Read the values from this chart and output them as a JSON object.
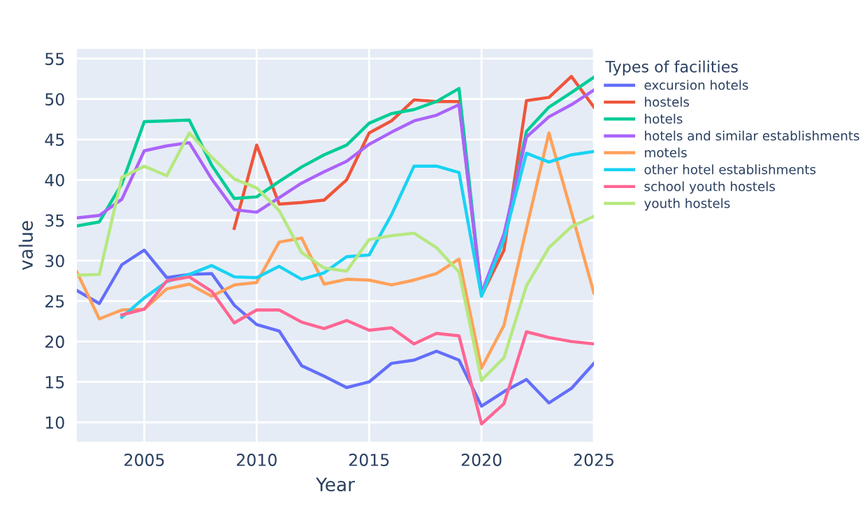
{
  "chart_data": {
    "type": "line",
    "xlabel": "Year",
    "ylabel": "value",
    "legend_title": "Types of facilities",
    "legend": "right",
    "grid": true,
    "xlim": [
      2002,
      2025
    ],
    "xticks": [
      2005,
      2010,
      2015,
      2020,
      2025
    ],
    "ylim": [
      7.6,
      56.2
    ],
    "yticks": [
      10,
      15,
      20,
      25,
      30,
      35,
      40,
      45,
      50,
      55
    ],
    "x": [
      2002,
      2003,
      2004,
      2005,
      2006,
      2007,
      2008,
      2009,
      2010,
      2011,
      2012,
      2013,
      2014,
      2015,
      2016,
      2017,
      2018,
      2019,
      2020,
      2021,
      2022,
      2023,
      2024,
      2025
    ],
    "series": [
      {
        "name": "excursion hotels",
        "color": "#636efa",
        "values": [
          26.3,
          24.7,
          29.5,
          31.3,
          27.9,
          28.3,
          28.4,
          24.5,
          22.1,
          21.3,
          17.0,
          15.7,
          14.3,
          15.0,
          17.3,
          17.7,
          18.8,
          17.7,
          12.0,
          13.8,
          15.3,
          12.4,
          14.2,
          17.3
        ]
      },
      {
        "name": "hostels",
        "color": "#ef553b",
        "values": [
          null,
          null,
          null,
          null,
          null,
          null,
          null,
          34.0,
          44.3,
          37.0,
          37.2,
          37.5,
          40.0,
          45.8,
          47.3,
          49.9,
          49.7,
          49.7,
          25.7,
          31.3,
          49.8,
          50.2,
          52.8,
          49.0
        ]
      },
      {
        "name": "hotels",
        "color": "#00cc96",
        "values": [
          34.3,
          34.8,
          39.5,
          47.2,
          47.3,
          47.4,
          41.8,
          37.7,
          37.9,
          39.8,
          41.6,
          43.1,
          44.3,
          47.0,
          48.2,
          48.7,
          49.7,
          51.3,
          25.8,
          33.0,
          46.0,
          49.0,
          50.8,
          52.7
        ]
      },
      {
        "name": "hotels and similar establishments",
        "color": "#ab63fa",
        "values": [
          35.3,
          35.6,
          37.6,
          43.6,
          44.2,
          44.6,
          40.1,
          36.3,
          36.0,
          37.8,
          39.6,
          41.0,
          42.3,
          44.4,
          45.9,
          47.3,
          48.0,
          49.3,
          26.0,
          33.3,
          45.3,
          47.8,
          49.3,
          51.1
        ]
      },
      {
        "name": "motels",
        "color": "#ffa15a",
        "values": [
          28.6,
          22.8,
          23.9,
          24.0,
          26.5,
          27.1,
          25.6,
          27.0,
          27.3,
          32.3,
          32.8,
          27.1,
          27.7,
          27.6,
          27.0,
          27.6,
          28.4,
          30.2,
          16.7,
          22.0,
          34.0,
          45.8,
          36.0,
          26.0
        ]
      },
      {
        "name": "other hotel establishments",
        "color": "#19d3f3",
        "values": [
          null,
          null,
          23.0,
          25.4,
          27.4,
          28.3,
          29.4,
          28.0,
          27.9,
          29.3,
          27.7,
          28.5,
          30.5,
          30.7,
          35.7,
          41.7,
          41.7,
          40.9,
          25.6,
          32.6,
          43.3,
          42.2,
          43.1,
          43.5
        ]
      },
      {
        "name": "school youth hostels",
        "color": "#ff6692",
        "values": [
          null,
          null,
          23.3,
          24.0,
          27.5,
          28.0,
          26.2,
          22.3,
          23.9,
          23.9,
          22.4,
          21.6,
          22.6,
          21.4,
          21.7,
          19.7,
          21.0,
          20.7,
          9.8,
          12.3,
          21.2,
          20.5,
          20.0,
          19.7
        ]
      },
      {
        "name": "youth hostels",
        "color": "#b6e880",
        "values": [
          28.2,
          28.3,
          40.3,
          41.7,
          40.5,
          45.8,
          42.8,
          40.1,
          39.0,
          36.2,
          31.0,
          29.1,
          28.7,
          32.6,
          33.1,
          33.4,
          31.6,
          28.6,
          15.2,
          18.0,
          26.9,
          31.6,
          34.2,
          35.5
        ]
      }
    ]
  }
}
